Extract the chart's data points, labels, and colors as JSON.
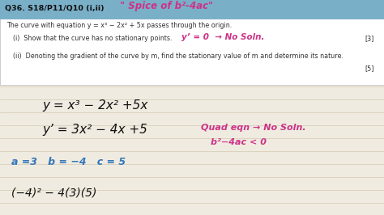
{
  "bg_color": "#f0ebe0",
  "header_bg": "#7aafc8",
  "header_text": "Q36. S18/P11/Q10 (i,ii)",
  "header_italic": "\" Spice of b²-4ac\"",
  "line1": "The curve with equation y = x³ − 2x² + 5x passes through the origin.",
  "qi_text": "(i)  Show that the curve has no stationary points.",
  "qi_hint": "y’ = 0  → No Soln.",
  "qi_marks": "[3]",
  "qii_text": "(ii)  Denoting the gradient of the curve by m, find the stationary value of m and determine its nature.",
  "qii_marks": "[5]",
  "math1": "y = x³ − 2x² +5x",
  "math2": "y’ = 3x² − 4x +5",
  "math3_annotation": "Quad eqn → No Soln.",
  "math4_annotation": "b²−4ac < 0",
  "math5": "a =3   b = −4   c = 5",
  "math6": "(−4)² − 4(3)(5)",
  "line_color": "#d4c9b0",
  "pink_color": "#cc3388",
  "blue_color": "#3377bb",
  "dark_color": "#111111",
  "orange_color": "#dd6600",
  "body_text_color": "#333333",
  "header_text_color": "#111111",
  "white_bg": "#ffffff",
  "figw": 4.74,
  "figh": 2.66,
  "dpi": 100
}
